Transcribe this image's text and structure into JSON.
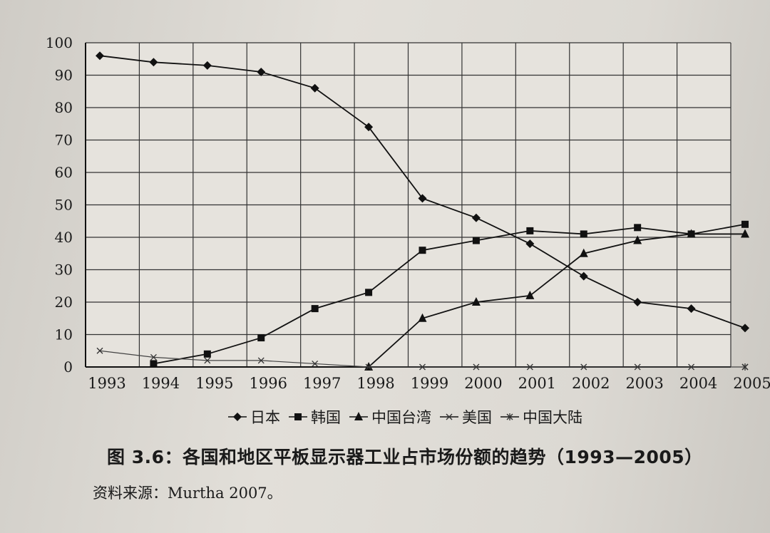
{
  "chart_data": {
    "type": "line",
    "title": "",
    "xlabel": "",
    "ylabel": "",
    "x": [
      "1993",
      "1994",
      "1995",
      "1996",
      "1997",
      "1998",
      "1999",
      "2000",
      "2001",
      "2002",
      "2003",
      "2004",
      "2005"
    ],
    "ylim": [
      0,
      100
    ],
    "yticks": [
      "0",
      "10",
      "20",
      "30",
      "40",
      "50",
      "60",
      "70",
      "80",
      "90",
      "100"
    ],
    "grid": true,
    "legend_position": "bottom",
    "series": [
      {
        "name": "日本",
        "marker": "diamond",
        "values": [
          96,
          94,
          93,
          91,
          86,
          74,
          52,
          46,
          38,
          28,
          20,
          18,
          12
        ]
      },
      {
        "name": "韩国",
        "marker": "square",
        "values": [
          null,
          1,
          4,
          9,
          18,
          23,
          36,
          39,
          42,
          41,
          43,
          41,
          44
        ]
      },
      {
        "name": "中国台湾",
        "marker": "triangle",
        "values": [
          null,
          null,
          null,
          null,
          null,
          0,
          15,
          20,
          22,
          35,
          39,
          41,
          41
        ]
      },
      {
        "name": "美国",
        "marker": "x",
        "values": [
          5,
          3,
          2,
          2,
          1,
          0,
          0,
          0,
          0,
          0,
          0,
          0,
          0
        ]
      },
      {
        "name": "中国大陆",
        "marker": "star",
        "values": [
          null,
          null,
          null,
          null,
          null,
          null,
          null,
          null,
          null,
          null,
          null,
          null,
          0
        ]
      }
    ]
  },
  "caption": "图 3.6：各国和地区平板显示器工业占市场份额的趋势（1993—2005）",
  "source": "资料来源：Murtha 2007。"
}
